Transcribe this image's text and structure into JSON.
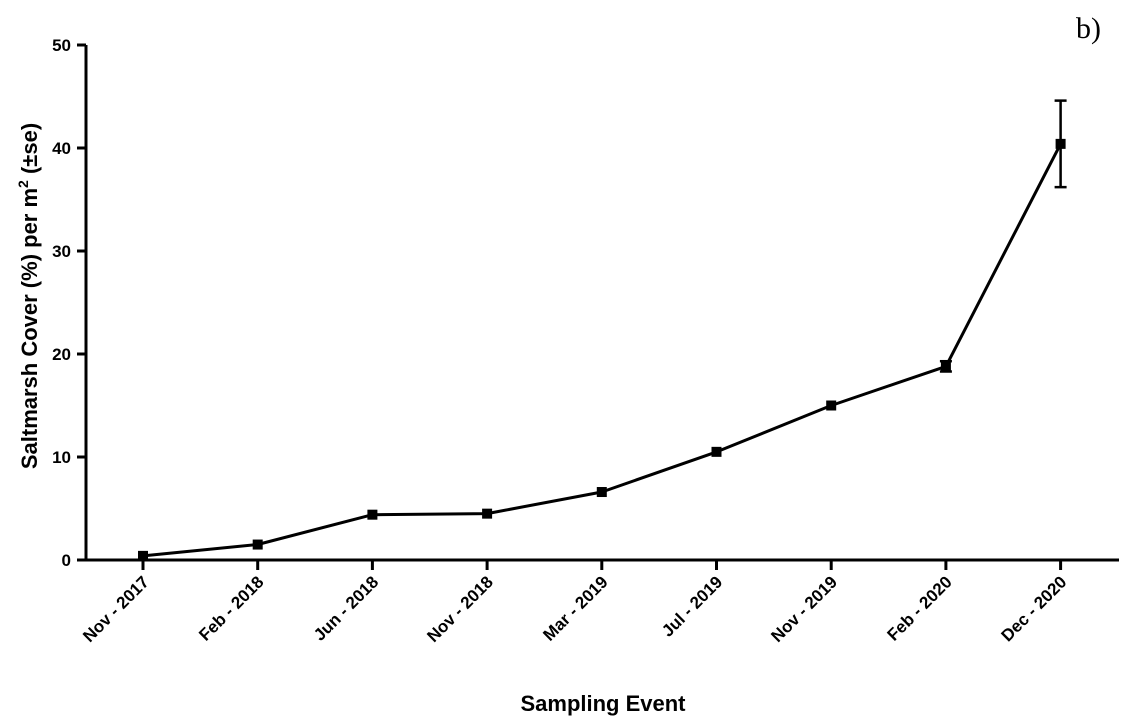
{
  "chart_data": {
    "type": "line",
    "panel_label": "b)",
    "xlabel": "Sampling Event",
    "ylabel": {
      "main": "Saltmarsh Cover (%) per m",
      "superscript": "2",
      "suffix": " (±se)"
    },
    "ylim": [
      0,
      50
    ],
    "yticks": [
      "0",
      "10",
      "20",
      "30",
      "40",
      "50"
    ],
    "categories": [
      "Nov - 2017",
      "Feb - 2018",
      "Jun - 2018",
      "Nov - 2018",
      "Mar - 2019",
      "Jul - 2019",
      "Nov - 2019",
      "Feb - 2020",
      "Dec - 2020"
    ],
    "series": [
      {
        "values": [
          0.4,
          1.5,
          4.4,
          4.5,
          6.6,
          10.5,
          15.0,
          18.8,
          40.4
        ],
        "error": [
          0.15,
          0.15,
          0.2,
          0.2,
          0.2,
          0.2,
          0.2,
          0.5,
          4.2
        ],
        "color": "#000000",
        "marker": "square"
      }
    ],
    "grid": false,
    "legend": "none"
  }
}
